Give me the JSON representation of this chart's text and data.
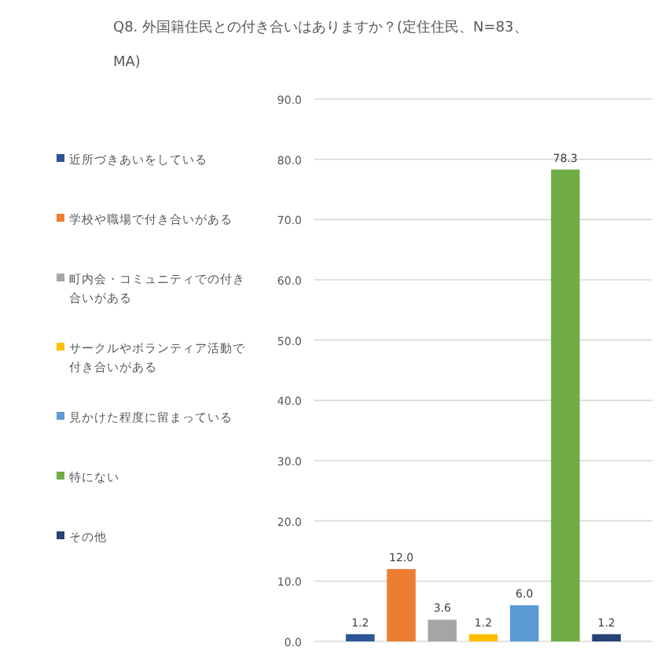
{
  "chart_data": {
    "type": "bar",
    "title": "Q8. 外国籍住民との付き合いはありますか？(定住住民、N=83、MA)",
    "categories": [
      null
    ],
    "series": [
      {
        "name": "近所づきあいをしている",
        "color": "#2f5597",
        "values": [
          1.2
        ],
        "value_labels": [
          "1.2"
        ]
      },
      {
        "name": "学校や職場で付き合いがある",
        "color": "#ed7d31",
        "values": [
          12.0
        ],
        "value_labels": [
          "12.0"
        ]
      },
      {
        "name": "町内会・コミュニティでの付き合いがある",
        "color": "#a5a5a5",
        "values": [
          3.6
        ],
        "value_labels": [
          "3.6"
        ]
      },
      {
        "name": "サークルやボランティア活動で付き合いがある",
        "color": "#ffc000",
        "values": [
          1.2
        ],
        "value_labels": [
          "1.2"
        ]
      },
      {
        "name": "見かけた程度に留まっている",
        "color": "#5b9bd5",
        "values": [
          6.0
        ],
        "value_labels": [
          "6.0"
        ]
      },
      {
        "name": "特にない",
        "color": "#70ad47",
        "values": [
          78.3
        ],
        "value_labels": [
          "78.3"
        ]
      },
      {
        "name": "その他",
        "color": "#264478",
        "values": [
          1.2
        ],
        "value_labels": [
          "1.2"
        ]
      }
    ],
    "ylim": [
      0,
      90
    ],
    "yticks": [
      {
        "value": 0,
        "label": "0.0"
      },
      {
        "value": 10,
        "label": "10.0"
      },
      {
        "value": 20,
        "label": "20.0"
      },
      {
        "value": 30,
        "label": "30.0"
      },
      {
        "value": 40,
        "label": "40.0"
      },
      {
        "value": 50,
        "label": "50.0"
      },
      {
        "value": 60,
        "label": "60.0"
      },
      {
        "value": 70,
        "label": "70.0"
      },
      {
        "value": 80,
        "label": "80.0"
      },
      {
        "value": 90,
        "label": "90.0"
      }
    ],
    "grid": "y",
    "legend": "left"
  }
}
